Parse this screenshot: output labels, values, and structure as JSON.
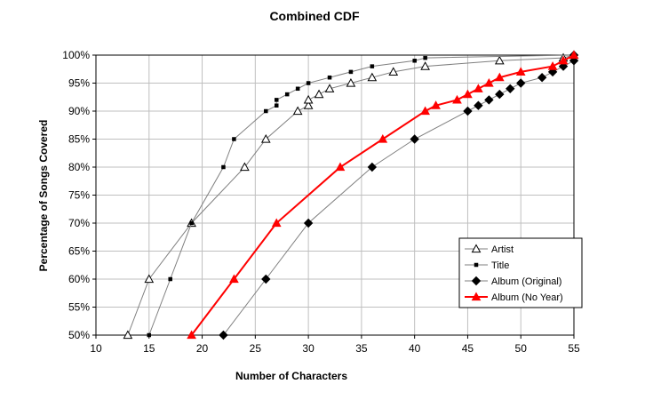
{
  "chart_data": {
    "type": "line",
    "title": "Combined CDF",
    "xlabel": "Number of Characters",
    "ylabel": "Percentage of Songs Covered",
    "xlim": [
      10,
      55
    ],
    "ylim": [
      50,
      100
    ],
    "x_ticks": [
      "10",
      "15",
      "20",
      "25",
      "30",
      "35",
      "40",
      "45",
      "50",
      "55"
    ],
    "y_ticks": [
      "50%",
      "55%",
      "60%",
      "65%",
      "70%",
      "75%",
      "80%",
      "85%",
      "90%",
      "95%",
      "100%"
    ],
    "grid": true,
    "legend_position": "bottom-right",
    "series": [
      {
        "name": "Artist",
        "marker": "open-triangle",
        "color": "#7f7f7f",
        "marker_color": "#000000",
        "x": [
          13,
          15,
          19,
          24,
          26,
          29,
          30,
          30,
          31,
          32,
          34,
          36,
          38,
          41,
          48,
          54,
          55
        ],
        "y": [
          50,
          60,
          70,
          80,
          85,
          90,
          91,
          92,
          93,
          94,
          95,
          96,
          97,
          98,
          99,
          99.5,
          100
        ]
      },
      {
        "name": "Title",
        "marker": "small-square",
        "color": "#7f7f7f",
        "marker_color": "#000000",
        "x": [
          15,
          17,
          19,
          22,
          23,
          26,
          27,
          27,
          28,
          29,
          30,
          32,
          34,
          36,
          40,
          41,
          55
        ],
        "y": [
          50,
          60,
          70,
          80,
          85,
          90,
          91,
          92,
          93,
          94,
          95,
          96,
          97,
          98,
          99,
          99.5,
          100
        ]
      },
      {
        "name": "Album (Original)",
        "marker": "filled-diamond",
        "color": "#7f7f7f",
        "marker_color": "#000000",
        "x": [
          22,
          26,
          30,
          36,
          40,
          45,
          46,
          47,
          48,
          49,
          50,
          52,
          53,
          54,
          55,
          55
        ],
        "y": [
          50,
          60,
          70,
          80,
          85,
          90,
          91,
          92,
          93,
          94,
          95,
          96,
          97,
          98,
          99,
          100
        ]
      },
      {
        "name": "Album (No Year)",
        "marker": "filled-triangle",
        "color": "#ff0000",
        "marker_color": "#ff0000",
        "x": [
          19,
          23,
          27,
          33,
          37,
          41,
          42,
          44,
          45,
          46,
          47,
          48,
          50,
          53,
          54,
          55
        ],
        "y": [
          50,
          60,
          70,
          80,
          85,
          90,
          91,
          92,
          93,
          94,
          95,
          96,
          97,
          98,
          99,
          100
        ]
      }
    ]
  }
}
